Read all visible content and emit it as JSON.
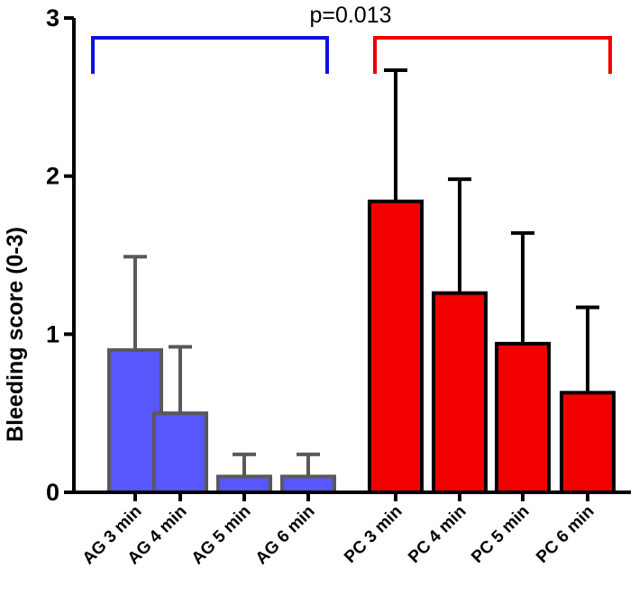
{
  "chart_data": {
    "type": "bar",
    "title": "",
    "xlabel": "",
    "ylabel": "Bleeding score (0-3)",
    "ylim": [
      0,
      3
    ],
    "yticks": [
      0,
      1,
      2,
      3
    ],
    "categories": [
      "AG 3 min",
      "AG 4 min",
      "AG 5 min",
      "AG 6 min",
      "PC 3 min",
      "PC 4 min",
      "PC 5 min",
      "PC 6 min"
    ],
    "values": [
      0.9,
      0.5,
      0.1,
      0.1,
      1.84,
      1.26,
      0.94,
      0.63
    ],
    "errors": [
      0.59,
      0.42,
      0.14,
      0.14,
      0.83,
      0.72,
      0.7,
      0.54
    ],
    "groups": [
      {
        "name": "AG",
        "color": "#5757fb",
        "outline": "#595959",
        "bracket_color": "#1010e0",
        "indices": [
          0,
          1,
          2,
          3
        ]
      },
      {
        "name": "PC",
        "color": "#f20000",
        "outline": "#000000",
        "bracket_color": "#f00000",
        "indices": [
          4,
          5,
          6,
          7
        ]
      }
    ],
    "annotation": "p=0.013"
  }
}
